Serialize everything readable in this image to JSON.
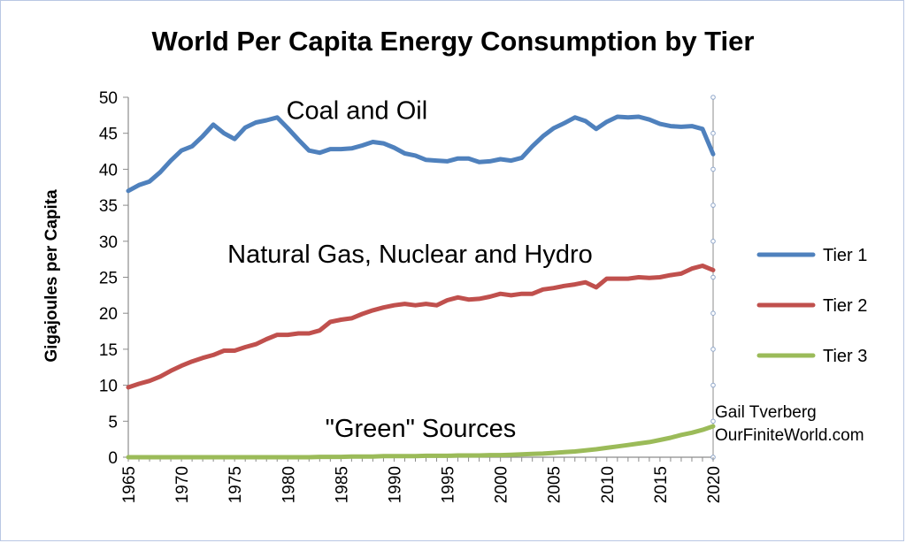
{
  "chart_data": {
    "type": "line",
    "title": "World Per Capita Energy Consumption by Tier",
    "ylabel": "Gigajoules per Capita",
    "xlabel": "",
    "ylim": [
      0,
      50
    ],
    "yticks": [
      0,
      5,
      10,
      15,
      20,
      25,
      30,
      35,
      40,
      45,
      50
    ],
    "xlim": [
      1965,
      2020
    ],
    "xticks": [
      1965,
      1970,
      1975,
      1980,
      1985,
      1990,
      1995,
      2000,
      2005,
      2010,
      2015,
      2020
    ],
    "grid": false,
    "legend_position": "right",
    "x": [
      1965,
      1966,
      1967,
      1968,
      1969,
      1970,
      1971,
      1972,
      1973,
      1974,
      1975,
      1976,
      1977,
      1978,
      1979,
      1980,
      1981,
      1982,
      1983,
      1984,
      1985,
      1986,
      1987,
      1988,
      1989,
      1990,
      1991,
      1992,
      1993,
      1994,
      1995,
      1996,
      1997,
      1998,
      1999,
      2000,
      2001,
      2002,
      2003,
      2004,
      2005,
      2006,
      2007,
      2008,
      2009,
      2010,
      2011,
      2012,
      2013,
      2014,
      2015,
      2016,
      2017,
      2018,
      2019,
      2020
    ],
    "series": [
      {
        "name": "Tier 1",
        "color": "#4f81bd",
        "values": [
          37.0,
          37.8,
          38.3,
          39.6,
          41.2,
          42.6,
          43.2,
          44.6,
          46.2,
          45.0,
          44.2,
          45.8,
          46.5,
          46.8,
          47.2,
          45.7,
          44.1,
          42.6,
          42.3,
          42.8,
          42.8,
          42.9,
          43.3,
          43.8,
          43.6,
          43.0,
          42.2,
          41.9,
          41.3,
          41.2,
          41.1,
          41.5,
          41.5,
          41.0,
          41.1,
          41.4,
          41.2,
          41.6,
          43.2,
          44.6,
          45.7,
          46.4,
          47.2,
          46.7,
          45.6,
          46.6,
          47.3,
          47.2,
          47.3,
          46.9,
          46.3,
          46.0,
          45.9,
          46.0,
          45.6,
          42.1
        ]
      },
      {
        "name": "Tier 2",
        "color": "#c0504d",
        "values": [
          9.7,
          10.2,
          10.6,
          11.2,
          12.0,
          12.7,
          13.3,
          13.8,
          14.2,
          14.8,
          14.8,
          15.3,
          15.7,
          16.4,
          17.0,
          17.0,
          17.2,
          17.2,
          17.6,
          18.8,
          19.1,
          19.3,
          19.9,
          20.4,
          20.8,
          21.1,
          21.3,
          21.1,
          21.3,
          21.1,
          21.8,
          22.2,
          21.9,
          22.0,
          22.3,
          22.7,
          22.5,
          22.7,
          22.7,
          23.3,
          23.5,
          23.8,
          24.0,
          24.3,
          23.6,
          24.8,
          24.8,
          24.8,
          25.0,
          24.9,
          25.0,
          25.3,
          25.5,
          26.2,
          26.6,
          26.0
        ]
      },
      {
        "name": "Tier 3",
        "color": "#9bbb59",
        "values": [
          0.0,
          0.0,
          0.0,
          0.0,
          0.0,
          0.0,
          0.0,
          0.0,
          0.0,
          0.0,
          0.0,
          0.0,
          0.0,
          0.0,
          0.0,
          0.0,
          0.0,
          0.0,
          0.05,
          0.05,
          0.05,
          0.1,
          0.1,
          0.1,
          0.15,
          0.15,
          0.15,
          0.15,
          0.2,
          0.2,
          0.2,
          0.25,
          0.25,
          0.25,
          0.3,
          0.3,
          0.35,
          0.4,
          0.45,
          0.5,
          0.6,
          0.7,
          0.8,
          0.95,
          1.1,
          1.3,
          1.5,
          1.7,
          1.9,
          2.1,
          2.4,
          2.7,
          3.1,
          3.4,
          3.8,
          4.3
        ]
      }
    ],
    "annotations": [
      {
        "text": "Coal and Oil",
        "x": 1986.5,
        "y": 47.0
      },
      {
        "text": "Natural Gas, Nuclear and Hydro",
        "x": 1991.5,
        "y": 27.0
      },
      {
        "text": "\"Green\" Sources",
        "x": 1992.5,
        "y": 2.8
      }
    ],
    "credit": [
      "Gail Tverberg",
      "OurFiniteWorld.com"
    ]
  }
}
